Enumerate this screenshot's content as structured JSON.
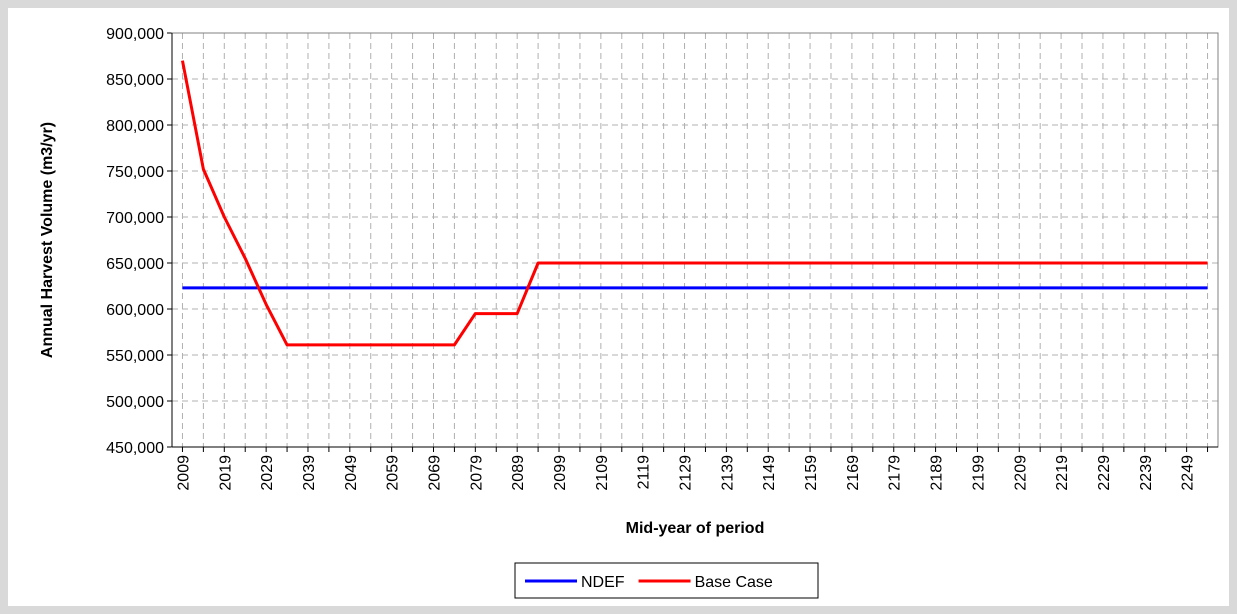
{
  "chart_data": {
    "type": "line",
    "x_label": "Mid-year of period",
    "y_label": "Annual Harvest Volume (m3/yr)",
    "categories": [
      "2009",
      null,
      "2019",
      null,
      "2029",
      null,
      "2039",
      null,
      "2049",
      null,
      "2059",
      null,
      "2069",
      null,
      "2079",
      null,
      "2089",
      null,
      "2099",
      null,
      "2109",
      null,
      "2119",
      null,
      "2129",
      null,
      "2139",
      null,
      "2149",
      null,
      "2159",
      null,
      "2169",
      null,
      "2179",
      null,
      "2189",
      null,
      "2199",
      null,
      "2209",
      null,
      "2219",
      null,
      "2229",
      null,
      "2239",
      null,
      "2249",
      null
    ],
    "series": [
      {
        "name": "NDEF",
        "color": "#0000ff",
        "values": [
          623000,
          623000,
          623000,
          623000,
          623000,
          623000,
          623000,
          623000,
          623000,
          623000,
          623000,
          623000,
          623000,
          623000,
          623000,
          623000,
          623000,
          623000,
          623000,
          623000,
          623000,
          623000,
          623000,
          623000,
          623000,
          623000,
          623000,
          623000,
          623000,
          623000,
          623000,
          623000,
          623000,
          623000,
          623000,
          623000,
          623000,
          623000,
          623000,
          623000,
          623000,
          623000,
          623000,
          623000,
          623000,
          623000,
          623000,
          623000,
          623000,
          623000
        ]
      },
      {
        "name": "Base Case",
        "color": "#ff0000",
        "values": [
          870000,
          752000,
          700000,
          655000,
          605000,
          561000,
          561000,
          561000,
          561000,
          561000,
          561000,
          561000,
          561000,
          561000,
          595000,
          595000,
          595000,
          650000,
          650000,
          650000,
          650000,
          650000,
          650000,
          650000,
          650000,
          650000,
          650000,
          650000,
          650000,
          650000,
          650000,
          650000,
          650000,
          650000,
          650000,
          650000,
          650000,
          650000,
          650000,
          650000,
          650000,
          650000,
          650000,
          650000,
          650000,
          650000,
          650000,
          650000,
          650000,
          650000
        ]
      }
    ],
    "ylim": [
      450000,
      900000
    ],
    "yticks": [
      {
        "value": 450000,
        "label": "450,000"
      },
      {
        "value": 500000,
        "label": "500,000"
      },
      {
        "value": 550000,
        "label": "550,000"
      },
      {
        "value": 600000,
        "label": "600,000"
      },
      {
        "value": 650000,
        "label": "650,000"
      },
      {
        "value": 700000,
        "label": "700,000"
      },
      {
        "value": 750000,
        "label": "750,000"
      },
      {
        "value": 800000,
        "label": "800,000"
      },
      {
        "value": 850000,
        "label": "850,000"
      },
      {
        "value": 900000,
        "label": "900,000"
      }
    ],
    "grid": true,
    "legend": "bottom"
  }
}
